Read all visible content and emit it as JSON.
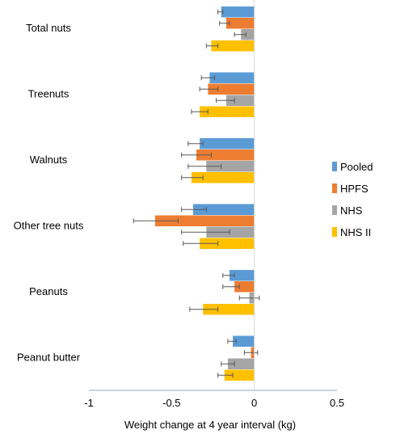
{
  "chart_data": {
    "type": "bar",
    "orientation": "horizontal",
    "categories": [
      "Total nuts",
      "Treenuts",
      "Walnuts",
      "Other tree nuts",
      "Peanuts",
      "Peanut butter"
    ],
    "series": [
      {
        "name": "Pooled",
        "color": "#5B9BD5",
        "values": [
          -0.2,
          -0.27,
          -0.33,
          -0.37,
          -0.15,
          -0.13
        ],
        "error_low": [
          -0.22,
          -0.32,
          -0.4,
          -0.44,
          -0.19,
          -0.16
        ],
        "error_high": [
          -0.19,
          -0.24,
          -0.31,
          -0.29,
          -0.12,
          -0.11
        ]
      },
      {
        "name": "HPFS",
        "color": "#ED7D31",
        "values": [
          -0.17,
          -0.28,
          -0.35,
          -0.6,
          -0.12,
          -0.02
        ],
        "error_low": [
          -0.21,
          -0.33,
          -0.44,
          -0.73,
          -0.19,
          -0.06
        ],
        "error_high": [
          -0.15,
          -0.22,
          -0.26,
          -0.46,
          -0.09,
          0.02
        ]
      },
      {
        "name": "NHS",
        "color": "#A5A5A5",
        "values": [
          -0.08,
          -0.17,
          -0.29,
          -0.29,
          -0.03,
          -0.16
        ],
        "error_low": [
          -0.12,
          -0.23,
          -0.4,
          -0.44,
          -0.09,
          -0.2
        ],
        "error_high": [
          -0.05,
          -0.12,
          -0.2,
          -0.15,
          0.03,
          -0.12
        ]
      },
      {
        "name": "NHS II",
        "color": "#FFC000",
        "values": [
          -0.26,
          -0.33,
          -0.38,
          -0.33,
          -0.31,
          -0.18
        ],
        "error_low": [
          -0.29,
          -0.38,
          -0.44,
          -0.43,
          -0.39,
          -0.22
        ],
        "error_high": [
          -0.22,
          -0.28,
          -0.31,
          -0.22,
          -0.22,
          -0.13
        ]
      }
    ],
    "title": "",
    "xlabel": "Weight change at 4 year interval (kg)",
    "ylabel": "",
    "xlim": [
      -1,
      0.5
    ],
    "xticks": [
      -1,
      -0.5,
      0,
      0.5
    ],
    "xtick_labels": [
      "-1",
      "-0.5",
      "0",
      "0.5"
    ],
    "legend_position": "right",
    "grid": false
  }
}
